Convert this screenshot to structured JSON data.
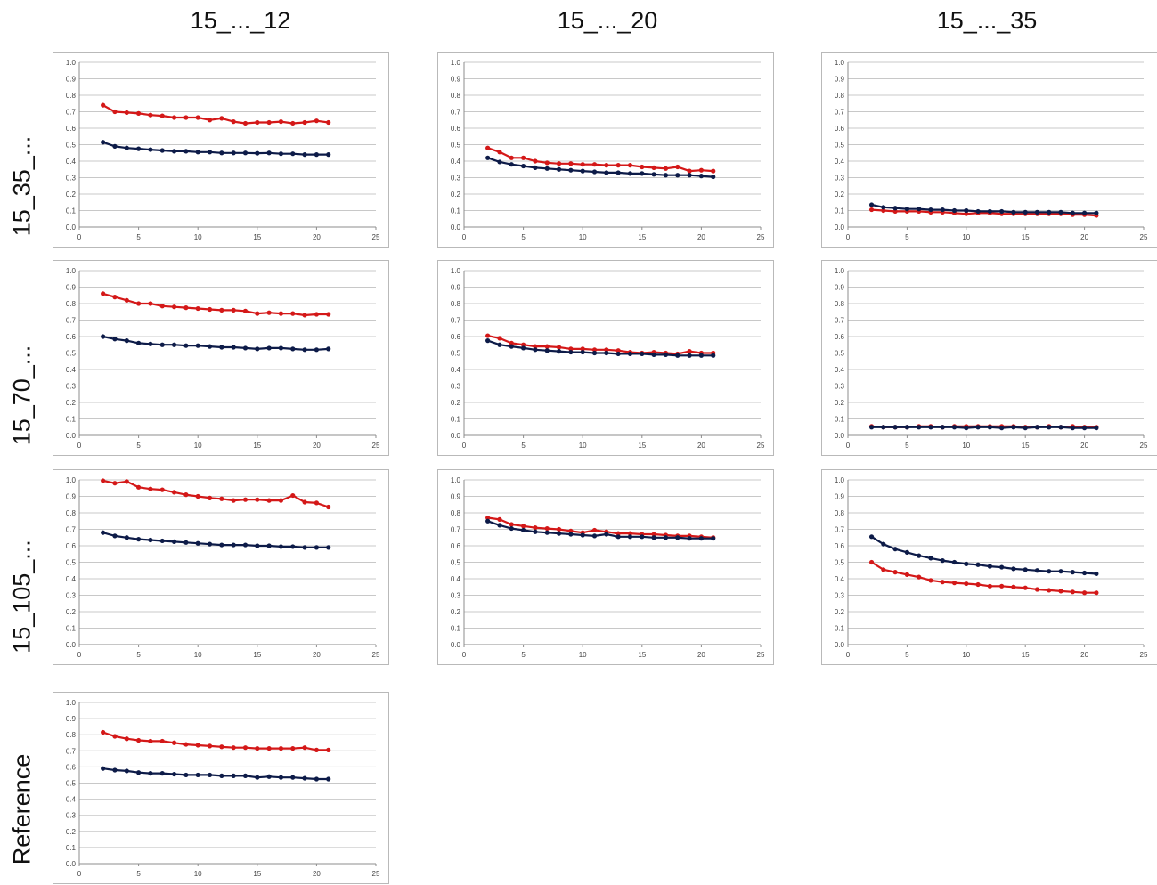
{
  "column_titles": [
    "15_..._12",
    "15_..._20",
    "15_..._35"
  ],
  "row_labels": [
    "15_35_...",
    "15_70_...",
    "15_105_...",
    "Reference"
  ],
  "colors": {
    "red": "#d41818",
    "navy": "#0d1b48",
    "grid": "#c8c8c8",
    "axis": "#8c8c8c"
  },
  "chart_data": [
    {
      "id": "r0c0",
      "type": "line",
      "xlim": [
        0,
        25
      ],
      "ylim": [
        0,
        1
      ],
      "xticks": [
        "0",
        "5",
        "10",
        "15",
        "20",
        "25"
      ],
      "yticks": [
        "0.0",
        "0.1",
        "0.2",
        "0.3",
        "0.4",
        "0.5",
        "0.6",
        "0.7",
        "0.8",
        "0.9",
        "1.0"
      ],
      "x": [
        2,
        3,
        4,
        5,
        6,
        7,
        8,
        9,
        10,
        11,
        12,
        13,
        14,
        15,
        16,
        17,
        18,
        19,
        20,
        21
      ],
      "series": [
        {
          "color": "red",
          "values": [
            0.74,
            0.7,
            0.695,
            0.69,
            0.68,
            0.675,
            0.665,
            0.665,
            0.665,
            0.65,
            0.66,
            0.64,
            0.63,
            0.635,
            0.635,
            0.64,
            0.63,
            0.635,
            0.645,
            0.635
          ]
        },
        {
          "color": "navy",
          "values": [
            0.515,
            0.49,
            0.48,
            0.475,
            0.47,
            0.465,
            0.46,
            0.46,
            0.455,
            0.455,
            0.45,
            0.45,
            0.45,
            0.448,
            0.45,
            0.445,
            0.445,
            0.44,
            0.44,
            0.44
          ]
        }
      ]
    },
    {
      "id": "r0c1",
      "type": "line",
      "xlim": [
        0,
        25
      ],
      "ylim": [
        0,
        1
      ],
      "xticks": [
        "0",
        "5",
        "10",
        "15",
        "20",
        "25"
      ],
      "yticks": [
        "0.0",
        "0.1",
        "0.2",
        "0.3",
        "0.4",
        "0.5",
        "0.6",
        "0.7",
        "0.8",
        "0.9",
        "1.0"
      ],
      "x": [
        2,
        3,
        4,
        5,
        6,
        7,
        8,
        9,
        10,
        11,
        12,
        13,
        14,
        15,
        16,
        17,
        18,
        19,
        20,
        21
      ],
      "series": [
        {
          "color": "red",
          "values": [
            0.48,
            0.455,
            0.42,
            0.42,
            0.4,
            0.39,
            0.385,
            0.385,
            0.38,
            0.38,
            0.375,
            0.375,
            0.375,
            0.365,
            0.36,
            0.355,
            0.365,
            0.34,
            0.345,
            0.34
          ]
        },
        {
          "color": "navy",
          "values": [
            0.42,
            0.395,
            0.38,
            0.37,
            0.36,
            0.355,
            0.35,
            0.345,
            0.34,
            0.335,
            0.33,
            0.33,
            0.325,
            0.325,
            0.32,
            0.315,
            0.315,
            0.315,
            0.31,
            0.305
          ]
        }
      ]
    },
    {
      "id": "r0c2",
      "type": "line",
      "xlim": [
        0,
        25
      ],
      "ylim": [
        0,
        1
      ],
      "xticks": [
        "0",
        "5",
        "10",
        "15",
        "20",
        "25"
      ],
      "yticks": [
        "0.0",
        "0.1",
        "0.2",
        "0.3",
        "0.4",
        "0.5",
        "0.6",
        "0.7",
        "0.8",
        "0.9",
        "1.0"
      ],
      "x": [
        2,
        3,
        4,
        5,
        6,
        7,
        8,
        9,
        10,
        11,
        12,
        13,
        14,
        15,
        16,
        17,
        18,
        19,
        20,
        21
      ],
      "series": [
        {
          "color": "red",
          "values": [
            0.105,
            0.1,
            0.095,
            0.095,
            0.095,
            0.09,
            0.09,
            0.085,
            0.08,
            0.085,
            0.085,
            0.08,
            0.08,
            0.08,
            0.08,
            0.08,
            0.08,
            0.075,
            0.075,
            0.07
          ]
        },
        {
          "color": "navy",
          "values": [
            0.135,
            0.12,
            0.115,
            0.11,
            0.11,
            0.105,
            0.105,
            0.1,
            0.1,
            0.095,
            0.095,
            0.095,
            0.09,
            0.09,
            0.09,
            0.09,
            0.09,
            0.085,
            0.085,
            0.085
          ]
        }
      ]
    },
    {
      "id": "r1c0",
      "type": "line",
      "xlim": [
        0,
        25
      ],
      "ylim": [
        0,
        1
      ],
      "xticks": [
        "0",
        "5",
        "10",
        "15",
        "20",
        "25"
      ],
      "yticks": [
        "0.0",
        "0.1",
        "0.2",
        "0.3",
        "0.4",
        "0.5",
        "0.6",
        "0.7",
        "0.8",
        "0.9",
        "1.0"
      ],
      "x": [
        2,
        3,
        4,
        5,
        6,
        7,
        8,
        9,
        10,
        11,
        12,
        13,
        14,
        15,
        16,
        17,
        18,
        19,
        20,
        21
      ],
      "series": [
        {
          "color": "red",
          "values": [
            0.86,
            0.84,
            0.82,
            0.8,
            0.8,
            0.785,
            0.78,
            0.775,
            0.77,
            0.765,
            0.76,
            0.76,
            0.755,
            0.74,
            0.745,
            0.74,
            0.74,
            0.73,
            0.735,
            0.735
          ]
        },
        {
          "color": "navy",
          "values": [
            0.6,
            0.585,
            0.575,
            0.56,
            0.555,
            0.55,
            0.55,
            0.545,
            0.545,
            0.54,
            0.535,
            0.535,
            0.53,
            0.525,
            0.53,
            0.53,
            0.525,
            0.52,
            0.52,
            0.525
          ]
        }
      ]
    },
    {
      "id": "r1c1",
      "type": "line",
      "xlim": [
        0,
        25
      ],
      "ylim": [
        0,
        1
      ],
      "xticks": [
        "0",
        "5",
        "10",
        "15",
        "20",
        "25"
      ],
      "yticks": [
        "0.0",
        "0.1",
        "0.2",
        "0.3",
        "0.4",
        "0.5",
        "0.6",
        "0.7",
        "0.8",
        "0.9",
        "1.0"
      ],
      "x": [
        2,
        3,
        4,
        5,
        6,
        7,
        8,
        9,
        10,
        11,
        12,
        13,
        14,
        15,
        16,
        17,
        18,
        19,
        20,
        21
      ],
      "series": [
        {
          "color": "red",
          "values": [
            0.605,
            0.59,
            0.56,
            0.55,
            0.54,
            0.54,
            0.535,
            0.525,
            0.525,
            0.52,
            0.52,
            0.515,
            0.505,
            0.5,
            0.505,
            0.5,
            0.495,
            0.51,
            0.5,
            0.5
          ]
        },
        {
          "color": "navy",
          "values": [
            0.575,
            0.55,
            0.54,
            0.53,
            0.52,
            0.515,
            0.51,
            0.505,
            0.505,
            0.5,
            0.5,
            0.495,
            0.495,
            0.495,
            0.49,
            0.49,
            0.485,
            0.485,
            0.485,
            0.485
          ]
        }
      ]
    },
    {
      "id": "r1c2",
      "type": "line",
      "xlim": [
        0,
        25
      ],
      "ylim": [
        0,
        1
      ],
      "xticks": [
        "0",
        "5",
        "10",
        "15",
        "20",
        "25"
      ],
      "yticks": [
        "0.0",
        "0.1",
        "0.2",
        "0.3",
        "0.4",
        "0.5",
        "0.6",
        "0.7",
        "0.8",
        "0.9",
        "1.0"
      ],
      "x": [
        2,
        3,
        4,
        5,
        6,
        7,
        8,
        9,
        10,
        11,
        12,
        13,
        14,
        15,
        16,
        17,
        18,
        19,
        20,
        21
      ],
      "series": [
        {
          "color": "red",
          "values": [
            0.055,
            0.05,
            0.05,
            0.05,
            0.055,
            0.055,
            0.05,
            0.055,
            0.055,
            0.055,
            0.055,
            0.055,
            0.055,
            0.05,
            0.05,
            0.055,
            0.05,
            0.055,
            0.05,
            0.05
          ]
        },
        {
          "color": "navy",
          "values": [
            0.05,
            0.05,
            0.05,
            0.05,
            0.05,
            0.05,
            0.05,
            0.05,
            0.045,
            0.05,
            0.05,
            0.045,
            0.05,
            0.045,
            0.05,
            0.05,
            0.05,
            0.045,
            0.045,
            0.045
          ]
        }
      ]
    },
    {
      "id": "r2c0",
      "type": "line",
      "xlim": [
        0,
        25
      ],
      "ylim": [
        0,
        1
      ],
      "xticks": [
        "0",
        "5",
        "10",
        "15",
        "20",
        "25"
      ],
      "yticks": [
        "0.0",
        "0.1",
        "0.2",
        "0.3",
        "0.4",
        "0.5",
        "0.6",
        "0.7",
        "0.8",
        "0.9",
        "1.0"
      ],
      "x": [
        2,
        3,
        4,
        5,
        6,
        7,
        8,
        9,
        10,
        11,
        12,
        13,
        14,
        15,
        16,
        17,
        18,
        19,
        20,
        21
      ],
      "series": [
        {
          "color": "red",
          "values": [
            0.995,
            0.98,
            0.99,
            0.955,
            0.945,
            0.94,
            0.925,
            0.91,
            0.9,
            0.89,
            0.885,
            0.875,
            0.88,
            0.88,
            0.875,
            0.875,
            0.905,
            0.865,
            0.86,
            0.835
          ]
        },
        {
          "color": "navy",
          "values": [
            0.68,
            0.66,
            0.65,
            0.64,
            0.635,
            0.63,
            0.625,
            0.62,
            0.615,
            0.61,
            0.605,
            0.605,
            0.605,
            0.6,
            0.6,
            0.595,
            0.595,
            0.59,
            0.59,
            0.59
          ]
        }
      ]
    },
    {
      "id": "r2c1",
      "type": "line",
      "xlim": [
        0,
        25
      ],
      "ylim": [
        0,
        1
      ],
      "xticks": [
        "0",
        "5",
        "10",
        "15",
        "20",
        "25"
      ],
      "yticks": [
        "0.0",
        "0.1",
        "0.2",
        "0.3",
        "0.4",
        "0.5",
        "0.6",
        "0.7",
        "0.8",
        "0.9",
        "1.0"
      ],
      "x": [
        2,
        3,
        4,
        5,
        6,
        7,
        8,
        9,
        10,
        11,
        12,
        13,
        14,
        15,
        16,
        17,
        18,
        19,
        20,
        21
      ],
      "series": [
        {
          "color": "red",
          "values": [
            0.77,
            0.76,
            0.73,
            0.72,
            0.71,
            0.705,
            0.7,
            0.69,
            0.68,
            0.695,
            0.685,
            0.675,
            0.675,
            0.67,
            0.67,
            0.665,
            0.66,
            0.66,
            0.655,
            0.65
          ]
        },
        {
          "color": "navy",
          "values": [
            0.75,
            0.725,
            0.705,
            0.695,
            0.685,
            0.68,
            0.675,
            0.67,
            0.665,
            0.66,
            0.67,
            0.655,
            0.655,
            0.655,
            0.65,
            0.65,
            0.65,
            0.645,
            0.645,
            0.645
          ]
        }
      ]
    },
    {
      "id": "r2c2",
      "type": "line",
      "xlim": [
        0,
        25
      ],
      "ylim": [
        0,
        1
      ],
      "xticks": [
        "0",
        "5",
        "10",
        "15",
        "20",
        "25"
      ],
      "yticks": [
        "0.0",
        "0.1",
        "0.2",
        "0.3",
        "0.4",
        "0.5",
        "0.6",
        "0.7",
        "0.8",
        "0.9",
        "1.0"
      ],
      "x": [
        2,
        3,
        4,
        5,
        6,
        7,
        8,
        9,
        10,
        11,
        12,
        13,
        14,
        15,
        16,
        17,
        18,
        19,
        20,
        21
      ],
      "series": [
        {
          "color": "red",
          "values": [
            0.5,
            0.455,
            0.44,
            0.425,
            0.41,
            0.39,
            0.38,
            0.375,
            0.37,
            0.365,
            0.355,
            0.355,
            0.35,
            0.345,
            0.335,
            0.33,
            0.325,
            0.32,
            0.315,
            0.315
          ]
        },
        {
          "color": "navy",
          "values": [
            0.655,
            0.61,
            0.58,
            0.56,
            0.54,
            0.525,
            0.51,
            0.5,
            0.49,
            0.485,
            0.475,
            0.47,
            0.46,
            0.455,
            0.45,
            0.445,
            0.445,
            0.44,
            0.435,
            0.43
          ]
        }
      ]
    },
    {
      "id": "r3c0",
      "type": "line",
      "xlim": [
        0,
        25
      ],
      "ylim": [
        0,
        1
      ],
      "xticks": [
        "0",
        "5",
        "10",
        "15",
        "20",
        "25"
      ],
      "yticks": [
        "0.0",
        "0.1",
        "0.2",
        "0.3",
        "0.4",
        "0.5",
        "0.6",
        "0.7",
        "0.8",
        "0.9",
        "1.0"
      ],
      "x": [
        2,
        3,
        4,
        5,
        6,
        7,
        8,
        9,
        10,
        11,
        12,
        13,
        14,
        15,
        16,
        17,
        18,
        19,
        20,
        21
      ],
      "series": [
        {
          "color": "red",
          "values": [
            0.815,
            0.79,
            0.775,
            0.765,
            0.76,
            0.76,
            0.75,
            0.74,
            0.735,
            0.73,
            0.725,
            0.72,
            0.72,
            0.715,
            0.715,
            0.715,
            0.715,
            0.72,
            0.705,
            0.705
          ]
        },
        {
          "color": "navy",
          "values": [
            0.59,
            0.58,
            0.575,
            0.565,
            0.56,
            0.56,
            0.555,
            0.55,
            0.55,
            0.55,
            0.545,
            0.545,
            0.545,
            0.535,
            0.54,
            0.535,
            0.535,
            0.53,
            0.525,
            0.525
          ]
        }
      ]
    }
  ]
}
